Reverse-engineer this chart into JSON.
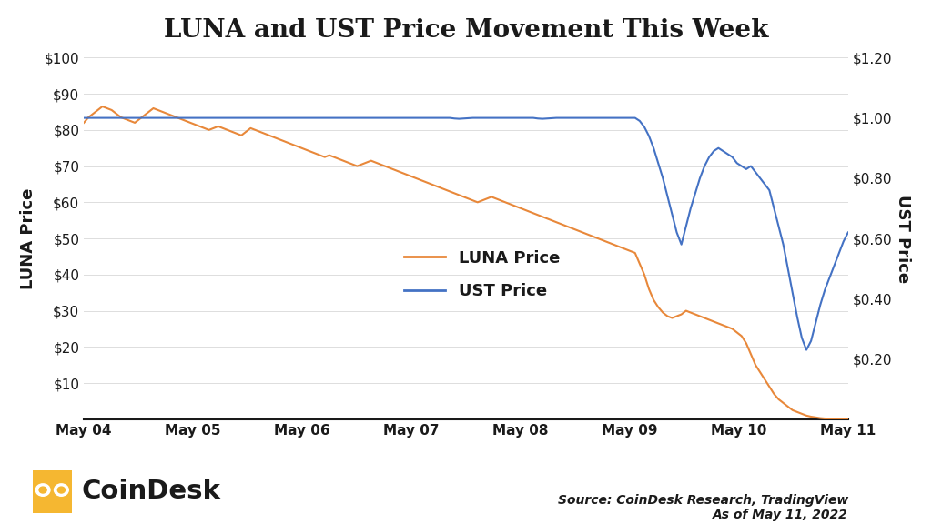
{
  "title": "LUNA and UST Price Movement This Week",
  "luna_color": "#E8883A",
  "ust_color": "#4472C4",
  "background_color": "#FFFFFF",
  "left_ylabel": "LUNA Price",
  "right_ylabel": "UST Price",
  "left_ylim": [
    0,
    100
  ],
  "right_ylim": [
    0,
    1.2
  ],
  "left_yticks": [
    10,
    20,
    30,
    40,
    50,
    60,
    70,
    80,
    90,
    100
  ],
  "right_yticks": [
    0.2,
    0.4,
    0.6,
    0.8,
    1.0,
    1.2
  ],
  "xtick_labels": [
    "May 04",
    "May 05",
    "May 06",
    "May 07",
    "May 08",
    "May 09",
    "May 10",
    "May 11"
  ],
  "legend_luna": "LUNA Price",
  "legend_ust": "UST Price",
  "source_text": "Source: CoinDesk Research, TradingView\nAs of May 11, 2022",
  "coindesk_text": "CoinDesk",
  "coindesk_color": "#1A1A1A",
  "coindesk_logo_color": "#F5B731",
  "title_fontsize": 20,
  "axis_label_fontsize": 13,
  "tick_fontsize": 11,
  "legend_fontsize": 13,
  "source_fontsize": 10,
  "luna_data": [
    82.0,
    83.5,
    84.5,
    85.5,
    86.5,
    86.0,
    85.5,
    84.5,
    83.5,
    83.0,
    82.5,
    82.0,
    83.0,
    84.0,
    85.0,
    86.0,
    85.5,
    85.0,
    84.5,
    84.0,
    83.5,
    83.0,
    82.5,
    82.0,
    81.5,
    81.0,
    80.5,
    80.0,
    80.5,
    81.0,
    80.5,
    80.0,
    79.5,
    79.0,
    78.5,
    79.5,
    80.5,
    80.0,
    79.5,
    79.0,
    78.5,
    78.0,
    77.5,
    77.0,
    76.5,
    76.0,
    75.5,
    75.0,
    74.5,
    74.0,
    73.5,
    73.0,
    72.5,
    73.0,
    72.5,
    72.0,
    71.5,
    71.0,
    70.5,
    70.0,
    70.5,
    71.0,
    71.5,
    71.0,
    70.5,
    70.0,
    69.5,
    69.0,
    68.5,
    68.0,
    67.5,
    67.0,
    66.5,
    66.0,
    65.5,
    65.0,
    64.5,
    64.0,
    63.5,
    63.0,
    62.5,
    62.0,
    61.5,
    61.0,
    60.5,
    60.0,
    60.5,
    61.0,
    61.5,
    61.0,
    60.5,
    60.0,
    59.5,
    59.0,
    58.5,
    58.0,
    57.5,
    57.0,
    56.5,
    56.0,
    55.5,
    55.0,
    54.5,
    54.0,
    53.5,
    53.0,
    52.5,
    52.0,
    51.5,
    51.0,
    50.5,
    50.0,
    49.5,
    49.0,
    48.5,
    48.0,
    47.5,
    47.0,
    46.5,
    46.0,
    43.0,
    40.0,
    36.0,
    33.0,
    31.0,
    29.5,
    28.5,
    28.0,
    28.5,
    29.0,
    30.0,
    29.5,
    29.0,
    28.5,
    28.0,
    27.5,
    27.0,
    26.5,
    26.0,
    25.5,
    25.0,
    24.0,
    23.0,
    21.0,
    18.0,
    15.0,
    13.0,
    11.0,
    9.0,
    7.0,
    5.5,
    4.5,
    3.5,
    2.5,
    2.0,
    1.5,
    1.0,
    0.7,
    0.5,
    0.3,
    0.2,
    0.15,
    0.12,
    0.1,
    0.08,
    0.06
  ],
  "ust_data": [
    1.0,
    1.0,
    1.0,
    1.0,
    1.0,
    1.0,
    1.0,
    1.0,
    1.0,
    1.0,
    1.0,
    1.0,
    1.0,
    1.0,
    1.0,
    1.0,
    1.0,
    1.0,
    1.0,
    1.0,
    1.0,
    1.0,
    1.0,
    1.0,
    1.0,
    1.0,
    1.0,
    1.0,
    1.0,
    1.0,
    1.0,
    1.0,
    1.0,
    1.0,
    1.0,
    1.0,
    1.0,
    1.0,
    1.0,
    1.0,
    1.0,
    1.0,
    1.0,
    1.0,
    1.0,
    1.0,
    1.0,
    1.0,
    1.0,
    1.0,
    1.0,
    1.0,
    1.0,
    1.0,
    1.0,
    1.0,
    1.0,
    1.0,
    1.0,
    1.0,
    1.0,
    1.0,
    1.0,
    1.0,
    1.0,
    1.0,
    1.0,
    1.0,
    1.0,
    1.0,
    1.0,
    1.0,
    1.0,
    1.0,
    1.0,
    1.0,
    1.0,
    1.0,
    1.0,
    1.0,
    0.998,
    0.997,
    0.998,
    0.999,
    1.0,
    1.0,
    1.0,
    1.0,
    1.0,
    1.0,
    1.0,
    1.0,
    1.0,
    1.0,
    1.0,
    1.0,
    1.0,
    1.0,
    0.998,
    0.997,
    0.998,
    0.999,
    1.0,
    1.0,
    1.0,
    1.0,
    1.0,
    1.0,
    1.0,
    1.0,
    1.0,
    1.0,
    1.0,
    1.0,
    1.0,
    1.0,
    1.0,
    1.0,
    1.0,
    1.0,
    0.99,
    0.97,
    0.94,
    0.9,
    0.85,
    0.8,
    0.74,
    0.68,
    0.62,
    0.58,
    0.64,
    0.7,
    0.75,
    0.8,
    0.84,
    0.87,
    0.89,
    0.9,
    0.89,
    0.88,
    0.87,
    0.85,
    0.84,
    0.83,
    0.84,
    0.82,
    0.8,
    0.78,
    0.76,
    0.7,
    0.64,
    0.58,
    0.5,
    0.42,
    0.34,
    0.27,
    0.23,
    0.26,
    0.32,
    0.38,
    0.43,
    0.47,
    0.51,
    0.55,
    0.59,
    0.62
  ]
}
